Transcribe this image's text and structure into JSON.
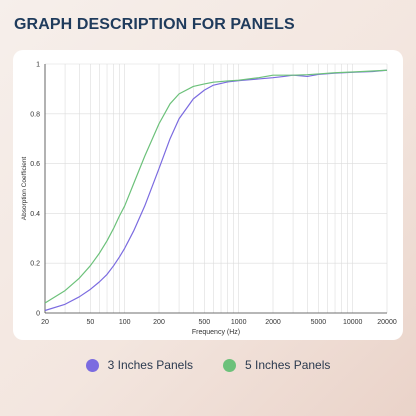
{
  "header": {
    "title": "GRAPH DESCRIPTION FOR PANELS"
  },
  "chart_data": {
    "type": "line",
    "title": "",
    "xlabel": "Frequency (Hz)",
    "ylabel": "Absorption Coefficient",
    "xscale": "log",
    "xlim": [
      20,
      20000
    ],
    "ylim": [
      0,
      1
    ],
    "grid": true,
    "x_ticks": [
      20,
      50,
      100,
      200,
      500,
      1000,
      2000,
      5000,
      10000,
      20000
    ],
    "x_tick_labels": [
      "20",
      "50",
      "100",
      "200",
      "500",
      "1000",
      "2000",
      "5000",
      "10000",
      "20000"
    ],
    "y_ticks": [
      0,
      0.2,
      0.4,
      0.6,
      0.8,
      1
    ],
    "y_tick_labels": [
      "0",
      "0.2",
      "0.4",
      "0.6",
      "0.8",
      "1"
    ],
    "legend_position": "bottom",
    "series": [
      {
        "name": "3 Inches Panels",
        "color": "#7b6be0",
        "x": [
          20,
          30,
          40,
          50,
          60,
          70,
          80,
          90,
          100,
          120,
          150,
          200,
          250,
          300,
          400,
          500,
          600,
          800,
          1000,
          1500,
          2000,
          2500,
          3000,
          4000,
          5000,
          7000,
          10000,
          15000,
          20000
        ],
        "y": [
          0.01,
          0.035,
          0.065,
          0.095,
          0.125,
          0.155,
          0.19,
          0.225,
          0.26,
          0.33,
          0.43,
          0.58,
          0.7,
          0.78,
          0.86,
          0.895,
          0.915,
          0.928,
          0.933,
          0.94,
          0.945,
          0.95,
          0.955,
          0.95,
          0.958,
          0.963,
          0.967,
          0.97,
          0.975
        ]
      },
      {
        "name": "5 Inches Panels",
        "color": "#6cc17a",
        "x": [
          20,
          30,
          40,
          50,
          60,
          70,
          80,
          90,
          100,
          120,
          150,
          200,
          250,
          300,
          400,
          500,
          600,
          800,
          1000,
          1500,
          2000,
          2500,
          3000,
          4000,
          5000,
          7000,
          10000,
          15000,
          20000
        ],
        "y": [
          0.04,
          0.09,
          0.14,
          0.19,
          0.24,
          0.29,
          0.34,
          0.39,
          0.43,
          0.52,
          0.63,
          0.76,
          0.84,
          0.88,
          0.91,
          0.92,
          0.927,
          0.932,
          0.935,
          0.945,
          0.955,
          0.955,
          0.955,
          0.957,
          0.96,
          0.965,
          0.968,
          0.972,
          0.975
        ]
      }
    ]
  }
}
